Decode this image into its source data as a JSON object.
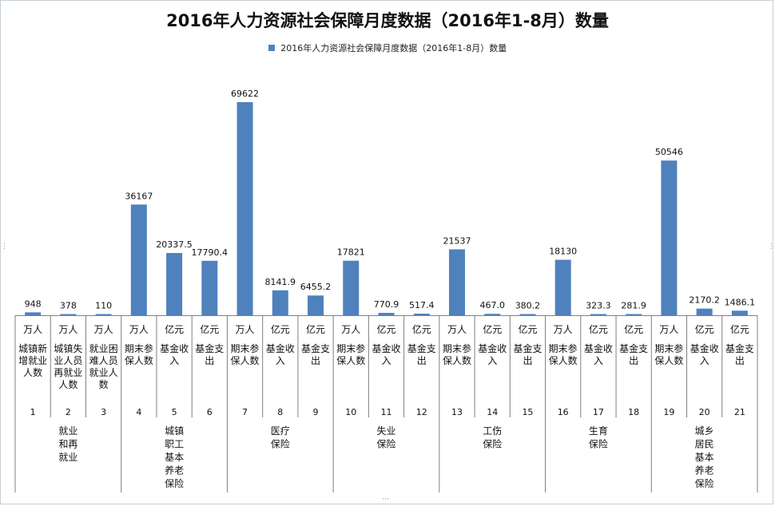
{
  "chart_data": {
    "type": "bar",
    "title": "2016年人力资源社会保障月度数据（2016年1-8月）数量",
    "legend": {
      "position": "top",
      "entries": [
        "2016年人力资源社会保障月度数据（2016年1-8月）数量"
      ]
    },
    "grid": false,
    "ylim": [
      0,
      70000
    ],
    "series": [
      {
        "name": "2016年人力资源社会保障月度数据（2016年1-8月）数量",
        "color": "#4f81bd",
        "values": [
          948,
          378,
          110,
          36167,
          20337.5,
          17790.4,
          69622,
          8141.9,
          6455.2,
          17821,
          770.9,
          517.4,
          21537,
          467.0,
          380.2,
          18130,
          323.3,
          281.9,
          50546,
          2170.2,
          1486.1
        ],
        "value_labels": [
          "948",
          "378",
          "110",
          "36167",
          "20337.5",
          "17790.4",
          "69622",
          "8141.9",
          "6455.2",
          "17821",
          "770.9",
          "517.4",
          "21537",
          "467.0",
          "380.2",
          "18130",
          "323.3",
          "281.9",
          "50546",
          "2170.2",
          "1486.1"
        ]
      }
    ],
    "categories": [
      {
        "unit": "万人",
        "item": [
          "城镇新",
          "增就业",
          "人数"
        ],
        "index": "1"
      },
      {
        "unit": "万人",
        "item": [
          "城镇失",
          "业人员",
          "再就业",
          "人数"
        ],
        "index": "2"
      },
      {
        "unit": "万人",
        "item": [
          "就业困",
          "难人员",
          "就业人",
          "数"
        ],
        "index": "3"
      },
      {
        "unit": "万人",
        "item": [
          "期末参",
          "保人数"
        ],
        "index": "4"
      },
      {
        "unit": "亿元",
        "item": [
          "基金收",
          "入"
        ],
        "index": "5"
      },
      {
        "unit": "亿元",
        "item": [
          "基金支",
          "出"
        ],
        "index": "6"
      },
      {
        "unit": "万人",
        "item": [
          "期末参",
          "保人数"
        ],
        "index": "7"
      },
      {
        "unit": "亿元",
        "item": [
          "基金收",
          "入"
        ],
        "index": "8"
      },
      {
        "unit": "亿元",
        "item": [
          "基金支",
          "出"
        ],
        "index": "9"
      },
      {
        "unit": "万人",
        "item": [
          "期末参",
          "保人数"
        ],
        "index": "10"
      },
      {
        "unit": "亿元",
        "item": [
          "基金收",
          "入"
        ],
        "index": "11"
      },
      {
        "unit": "亿元",
        "item": [
          "基金支",
          "出"
        ],
        "index": "12"
      },
      {
        "unit": "万人",
        "item": [
          "期末参",
          "保人数"
        ],
        "index": "13"
      },
      {
        "unit": "亿元",
        "item": [
          "基金收",
          "入"
        ],
        "index": "14"
      },
      {
        "unit": "亿元",
        "item": [
          "基金支",
          "出"
        ],
        "index": "15"
      },
      {
        "unit": "万人",
        "item": [
          "期末参",
          "保人数"
        ],
        "index": "16"
      },
      {
        "unit": "亿元",
        "item": [
          "基金收",
          "入"
        ],
        "index": "17"
      },
      {
        "unit": "亿元",
        "item": [
          "基金支",
          "出"
        ],
        "index": "18"
      },
      {
        "unit": "万人",
        "item": [
          "期末参",
          "保人数"
        ],
        "index": "19"
      },
      {
        "unit": "亿元",
        "item": [
          "基金收",
          "入"
        ],
        "index": "20"
      },
      {
        "unit": "亿元",
        "item": [
          "基金支",
          "出"
        ],
        "index": "21"
      }
    ],
    "groups": [
      {
        "name": [
          "就业",
          "和再",
          "就业"
        ],
        "count": 3
      },
      {
        "name": [
          "城镇",
          "职工",
          "基本",
          "养老",
          "保险"
        ],
        "count": 3
      },
      {
        "name": [
          "医疗",
          "保险"
        ],
        "count": 3
      },
      {
        "name": [
          "失业",
          "保险"
        ],
        "count": 3
      },
      {
        "name": [
          "工伤",
          "保险"
        ],
        "count": 3
      },
      {
        "name": [
          "生育",
          "保险"
        ],
        "count": 3
      },
      {
        "name": [
          "城乡",
          "居民",
          "基本",
          "养老",
          "保险"
        ],
        "count": 3
      }
    ]
  }
}
